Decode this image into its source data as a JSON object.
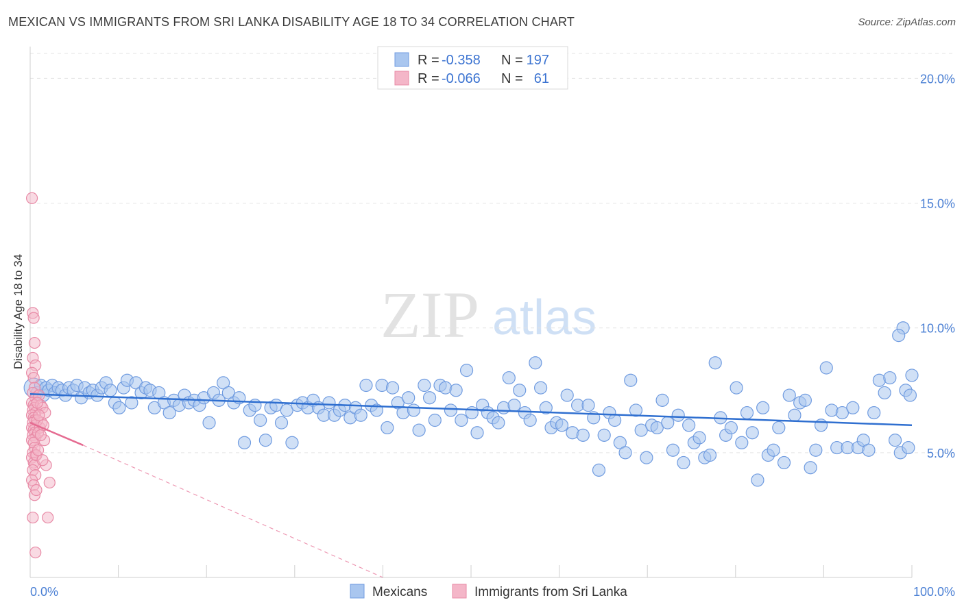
{
  "title": "MEXICAN VS IMMIGRANTS FROM SRI LANKA DISABILITY AGE 18 TO 34 CORRELATION CHART",
  "source": "Source: ZipAtlas.com",
  "watermark": {
    "zip": "ZIP",
    "atlas": "atlas"
  },
  "colors": {
    "blue_fill": "#a9c6ef",
    "blue_stroke": "#6f9be0",
    "blue_line": "#2f6fd0",
    "pink_fill": "#f4b6c8",
    "pink_stroke": "#e88aa6",
    "pink_line": "#e56b91",
    "tick_text": "#4a7fd4"
  },
  "legend": {
    "rows": [
      {
        "r_label": "R =",
        "r_value": "-0.358",
        "n_label": "N =",
        "n_value": "197"
      },
      {
        "r_label": "R =",
        "r_value": "-0.066",
        "n_label": "N =",
        "n_value": "61"
      }
    ]
  },
  "chart_data": {
    "type": "scatter",
    "title": "MEXICAN VS IMMIGRANTS FROM SRI LANKA DISABILITY AGE 18 TO 34 CORRELATION CHART",
    "xlabel": "",
    "ylabel": "Disability Age 18 to 34",
    "xlim": [
      0,
      100
    ],
    "ylim": [
      0,
      21
    ],
    "x_tick_labels": [
      "0.0%",
      "100.0%"
    ],
    "y_ticks": [
      5,
      10,
      15,
      20
    ],
    "y_tick_labels": [
      "5.0%",
      "10.0%",
      "15.0%",
      "20.0%"
    ],
    "grid": true,
    "legend_position": "top-center",
    "series": [
      {
        "name": "Mexicans",
        "color": "#a9c6ef",
        "trend": {
          "x": [
            0,
            100
          ],
          "y": [
            7.35,
            6.1
          ]
        },
        "points": [
          [
            0.4,
            7.6
          ],
          [
            0.8,
            7.4
          ],
          [
            1.2,
            7.7
          ],
          [
            1.5,
            7.3
          ],
          [
            1.8,
            7.6
          ],
          [
            2.1,
            7.5
          ],
          [
            2.5,
            7.7
          ],
          [
            2.8,
            7.4
          ],
          [
            3.2,
            7.6
          ],
          [
            3.6,
            7.5
          ],
          [
            4.0,
            7.3
          ],
          [
            4.4,
            7.6
          ],
          [
            4.9,
            7.5
          ],
          [
            5.3,
            7.7
          ],
          [
            5.8,
            7.2
          ],
          [
            6.2,
            7.6
          ],
          [
            6.7,
            7.4
          ],
          [
            7.1,
            7.5
          ],
          [
            7.6,
            7.3
          ],
          [
            8.1,
            7.6
          ],
          [
            8.6,
            7.8
          ],
          [
            9.1,
            7.5
          ],
          [
            9.6,
            7.0
          ],
          [
            10.1,
            6.8
          ],
          [
            10.6,
            7.6
          ],
          [
            11.0,
            7.9
          ],
          [
            11.5,
            7.0
          ],
          [
            12.0,
            7.8
          ],
          [
            12.6,
            7.4
          ],
          [
            13.1,
            7.6
          ],
          [
            13.6,
            7.5
          ],
          [
            14.1,
            6.8
          ],
          [
            14.6,
            7.4
          ],
          [
            15.2,
            7.0
          ],
          [
            15.8,
            6.6
          ],
          [
            16.3,
            7.1
          ],
          [
            16.9,
            6.9
          ],
          [
            17.5,
            7.3
          ],
          [
            18.0,
            7.0
          ],
          [
            18.6,
            7.1
          ],
          [
            19.2,
            6.9
          ],
          [
            19.7,
            7.2
          ],
          [
            20.3,
            6.2
          ],
          [
            20.8,
            7.4
          ],
          [
            21.4,
            7.1
          ],
          [
            21.9,
            7.8
          ],
          [
            22.5,
            7.4
          ],
          [
            23.1,
            7.0
          ],
          [
            23.7,
            7.2
          ],
          [
            24.3,
            5.4
          ],
          [
            24.9,
            6.7
          ],
          [
            25.5,
            6.9
          ],
          [
            26.1,
            6.3
          ],
          [
            26.7,
            5.5
          ],
          [
            27.3,
            6.8
          ],
          [
            27.9,
            6.9
          ],
          [
            28.5,
            6.2
          ],
          [
            29.1,
            6.7
          ],
          [
            29.7,
            5.4
          ],
          [
            30.3,
            6.9
          ],
          [
            30.9,
            7.0
          ],
          [
            31.5,
            6.8
          ],
          [
            32.1,
            7.1
          ],
          [
            32.7,
            6.8
          ],
          [
            33.3,
            6.5
          ],
          [
            33.9,
            7.0
          ],
          [
            34.5,
            6.5
          ],
          [
            35.1,
            6.7
          ],
          [
            35.7,
            6.9
          ],
          [
            36.3,
            6.4
          ],
          [
            36.9,
            6.8
          ],
          [
            37.5,
            6.5
          ],
          [
            38.1,
            7.7
          ],
          [
            38.7,
            6.9
          ],
          [
            39.3,
            6.7
          ],
          [
            39.9,
            7.7
          ],
          [
            40.5,
            6.0
          ],
          [
            41.1,
            7.6
          ],
          [
            41.7,
            7.0
          ],
          [
            42.3,
            6.6
          ],
          [
            42.9,
            7.2
          ],
          [
            43.5,
            6.7
          ],
          [
            44.1,
            5.9
          ],
          [
            44.7,
            7.7
          ],
          [
            45.3,
            7.2
          ],
          [
            45.9,
            6.3
          ],
          [
            46.5,
            7.7
          ],
          [
            47.1,
            7.6
          ],
          [
            47.7,
            6.7
          ],
          [
            48.3,
            7.5
          ],
          [
            48.9,
            6.3
          ],
          [
            49.5,
            8.3
          ],
          [
            50.1,
            6.6
          ],
          [
            50.7,
            5.8
          ],
          [
            51.3,
            6.9
          ],
          [
            51.9,
            6.6
          ],
          [
            52.5,
            6.4
          ],
          [
            53.1,
            6.2
          ],
          [
            53.7,
            6.8
          ],
          [
            54.3,
            8.0
          ],
          [
            54.9,
            6.9
          ],
          [
            55.5,
            7.5
          ],
          [
            56.1,
            6.6
          ],
          [
            56.7,
            6.3
          ],
          [
            57.3,
            8.6
          ],
          [
            57.9,
            7.6
          ],
          [
            58.5,
            6.8
          ],
          [
            59.1,
            6.0
          ],
          [
            59.7,
            6.2
          ],
          [
            60.3,
            6.1
          ],
          [
            60.9,
            7.3
          ],
          [
            61.5,
            5.8
          ],
          [
            62.1,
            6.9
          ],
          [
            62.7,
            5.7
          ],
          [
            63.3,
            6.9
          ],
          [
            63.9,
            6.4
          ],
          [
            64.5,
            4.3
          ],
          [
            65.1,
            5.7
          ],
          [
            65.7,
            6.6
          ],
          [
            66.3,
            6.3
          ],
          [
            66.9,
            5.4
          ],
          [
            67.5,
            5.0
          ],
          [
            68.1,
            7.9
          ],
          [
            68.7,
            6.7
          ],
          [
            69.3,
            5.9
          ],
          [
            69.9,
            4.8
          ],
          [
            70.5,
            6.1
          ],
          [
            71.1,
            6.0
          ],
          [
            71.7,
            7.1
          ],
          [
            72.3,
            6.2
          ],
          [
            72.9,
            5.1
          ],
          [
            73.5,
            6.5
          ],
          [
            74.1,
            4.6
          ],
          [
            74.7,
            6.1
          ],
          [
            75.3,
            5.4
          ],
          [
            75.9,
            5.6
          ],
          [
            76.5,
            4.8
          ],
          [
            77.1,
            4.9
          ],
          [
            77.7,
            8.6
          ],
          [
            78.3,
            6.4
          ],
          [
            78.9,
            5.7
          ],
          [
            79.5,
            6.0
          ],
          [
            80.1,
            7.6
          ],
          [
            80.7,
            5.4
          ],
          [
            81.3,
            6.6
          ],
          [
            81.9,
            5.8
          ],
          [
            82.5,
            3.9
          ],
          [
            83.1,
            6.8
          ],
          [
            83.7,
            4.9
          ],
          [
            84.3,
            5.1
          ],
          [
            84.9,
            6.0
          ],
          [
            85.5,
            4.6
          ],
          [
            86.1,
            7.3
          ],
          [
            86.7,
            6.5
          ],
          [
            87.3,
            7.0
          ],
          [
            87.9,
            7.1
          ],
          [
            88.5,
            4.4
          ],
          [
            89.1,
            5.1
          ],
          [
            89.7,
            6.1
          ],
          [
            90.3,
            8.4
          ],
          [
            90.9,
            6.7
          ],
          [
            91.5,
            5.2
          ],
          [
            92.1,
            6.6
          ],
          [
            92.7,
            5.2
          ],
          [
            93.3,
            6.8
          ],
          [
            93.9,
            5.2
          ],
          [
            94.5,
            5.5
          ],
          [
            95.1,
            5.1
          ],
          [
            95.7,
            6.6
          ],
          [
            96.3,
            7.9
          ],
          [
            96.9,
            7.4
          ],
          [
            97.5,
            8.0
          ],
          [
            98.1,
            5.5
          ],
          [
            98.7,
            5.0
          ],
          [
            99.3,
            7.5
          ],
          [
            99.8,
            7.3
          ],
          [
            99.6,
            5.2
          ],
          [
            100.0,
            8.1
          ],
          [
            99.0,
            10.0
          ],
          [
            98.5,
            9.7
          ]
        ]
      },
      {
        "name": "Immigrants from Sri Lanka",
        "color": "#f4b6c8",
        "trend": {
          "x": [
            0,
            6
          ],
          "y": [
            6.2,
            5.3
          ]
        },
        "trend_ext": {
          "x": [
            6,
            40
          ],
          "y": [
            5.3,
            0
          ]
        },
        "points": [
          [
            0.2,
            15.2
          ],
          [
            0.3,
            10.6
          ],
          [
            0.4,
            10.4
          ],
          [
            0.5,
            9.4
          ],
          [
            0.3,
            8.8
          ],
          [
            0.6,
            8.5
          ],
          [
            0.2,
            8.2
          ],
          [
            0.4,
            8.0
          ],
          [
            0.5,
            7.6
          ],
          [
            0.3,
            7.4
          ],
          [
            0.6,
            7.2
          ],
          [
            0.2,
            7.0
          ],
          [
            0.4,
            6.9
          ],
          [
            0.5,
            6.8
          ],
          [
            0.3,
            6.7
          ],
          [
            0.6,
            6.6
          ],
          [
            0.2,
            6.5
          ],
          [
            0.4,
            6.4
          ],
          [
            0.5,
            6.3
          ],
          [
            0.3,
            6.2
          ],
          [
            0.6,
            6.1
          ],
          [
            0.2,
            6.0
          ],
          [
            0.4,
            5.9
          ],
          [
            0.5,
            5.8
          ],
          [
            0.3,
            5.7
          ],
          [
            0.6,
            5.6
          ],
          [
            0.2,
            5.5
          ],
          [
            0.4,
            5.4
          ],
          [
            0.5,
            5.2
          ],
          [
            0.3,
            5.0
          ],
          [
            0.6,
            4.9
          ],
          [
            0.2,
            4.8
          ],
          [
            0.4,
            4.6
          ],
          [
            0.5,
            4.5
          ],
          [
            0.3,
            4.3
          ],
          [
            0.6,
            4.1
          ],
          [
            0.2,
            3.9
          ],
          [
            0.4,
            3.7
          ],
          [
            0.5,
            3.3
          ],
          [
            0.3,
            2.4
          ],
          [
            0.6,
            1.0
          ],
          [
            1.0,
            7.3
          ],
          [
            1.2,
            6.9
          ],
          [
            1.4,
            6.8
          ],
          [
            1.6,
            5.5
          ],
          [
            1.8,
            4.5
          ],
          [
            2.0,
            2.4
          ],
          [
            2.2,
            3.8
          ],
          [
            1.1,
            6.0
          ],
          [
            1.3,
            6.2
          ],
          [
            0.9,
            5.8
          ],
          [
            0.8,
            6.3
          ],
          [
            1.5,
            6.1
          ],
          [
            0.7,
            4.9
          ],
          [
            0.9,
            5.1
          ],
          [
            1.7,
            6.6
          ],
          [
            0.8,
            7.0
          ],
          [
            1.0,
            6.5
          ],
          [
            1.2,
            5.7
          ],
          [
            1.4,
            4.7
          ],
          [
            0.7,
            3.5
          ]
        ]
      }
    ]
  }
}
